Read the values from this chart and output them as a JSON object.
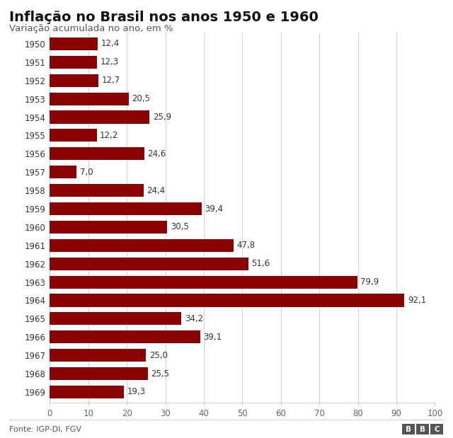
{
  "title": "Inflação no Brasil nos anos 1950 e 1960",
  "subtitle": "Variação acumulada no ano, em %",
  "source": "Fonte: IGP-DI, FGV",
  "bar_color": "#8B0000",
  "background_color": "#ffffff",
  "years": [
    "1950",
    "1951",
    "1952",
    "1953",
    "1954",
    "1955",
    "1956",
    "1957",
    "1958",
    "1959",
    "1960",
    "1961",
    "1962",
    "1963",
    "1964",
    "1965",
    "1966",
    "1967",
    "1968",
    "1969"
  ],
  "values": [
    12.4,
    12.3,
    12.7,
    20.5,
    25.9,
    12.2,
    24.6,
    7.0,
    24.4,
    39.4,
    30.5,
    47.8,
    51.6,
    79.9,
    92.1,
    34.2,
    39.1,
    25.0,
    25.5,
    19.3
  ],
  "xlim": [
    0,
    100
  ],
  "xticks": [
    0,
    10,
    20,
    30,
    40,
    50,
    60,
    70,
    80,
    90,
    100
  ],
  "title_fontsize": 14,
  "subtitle_fontsize": 9.5,
  "label_fontsize": 8.5,
  "tick_fontsize": 8.5,
  "source_fontsize": 8,
  "bbc_fontsize": 7.5
}
